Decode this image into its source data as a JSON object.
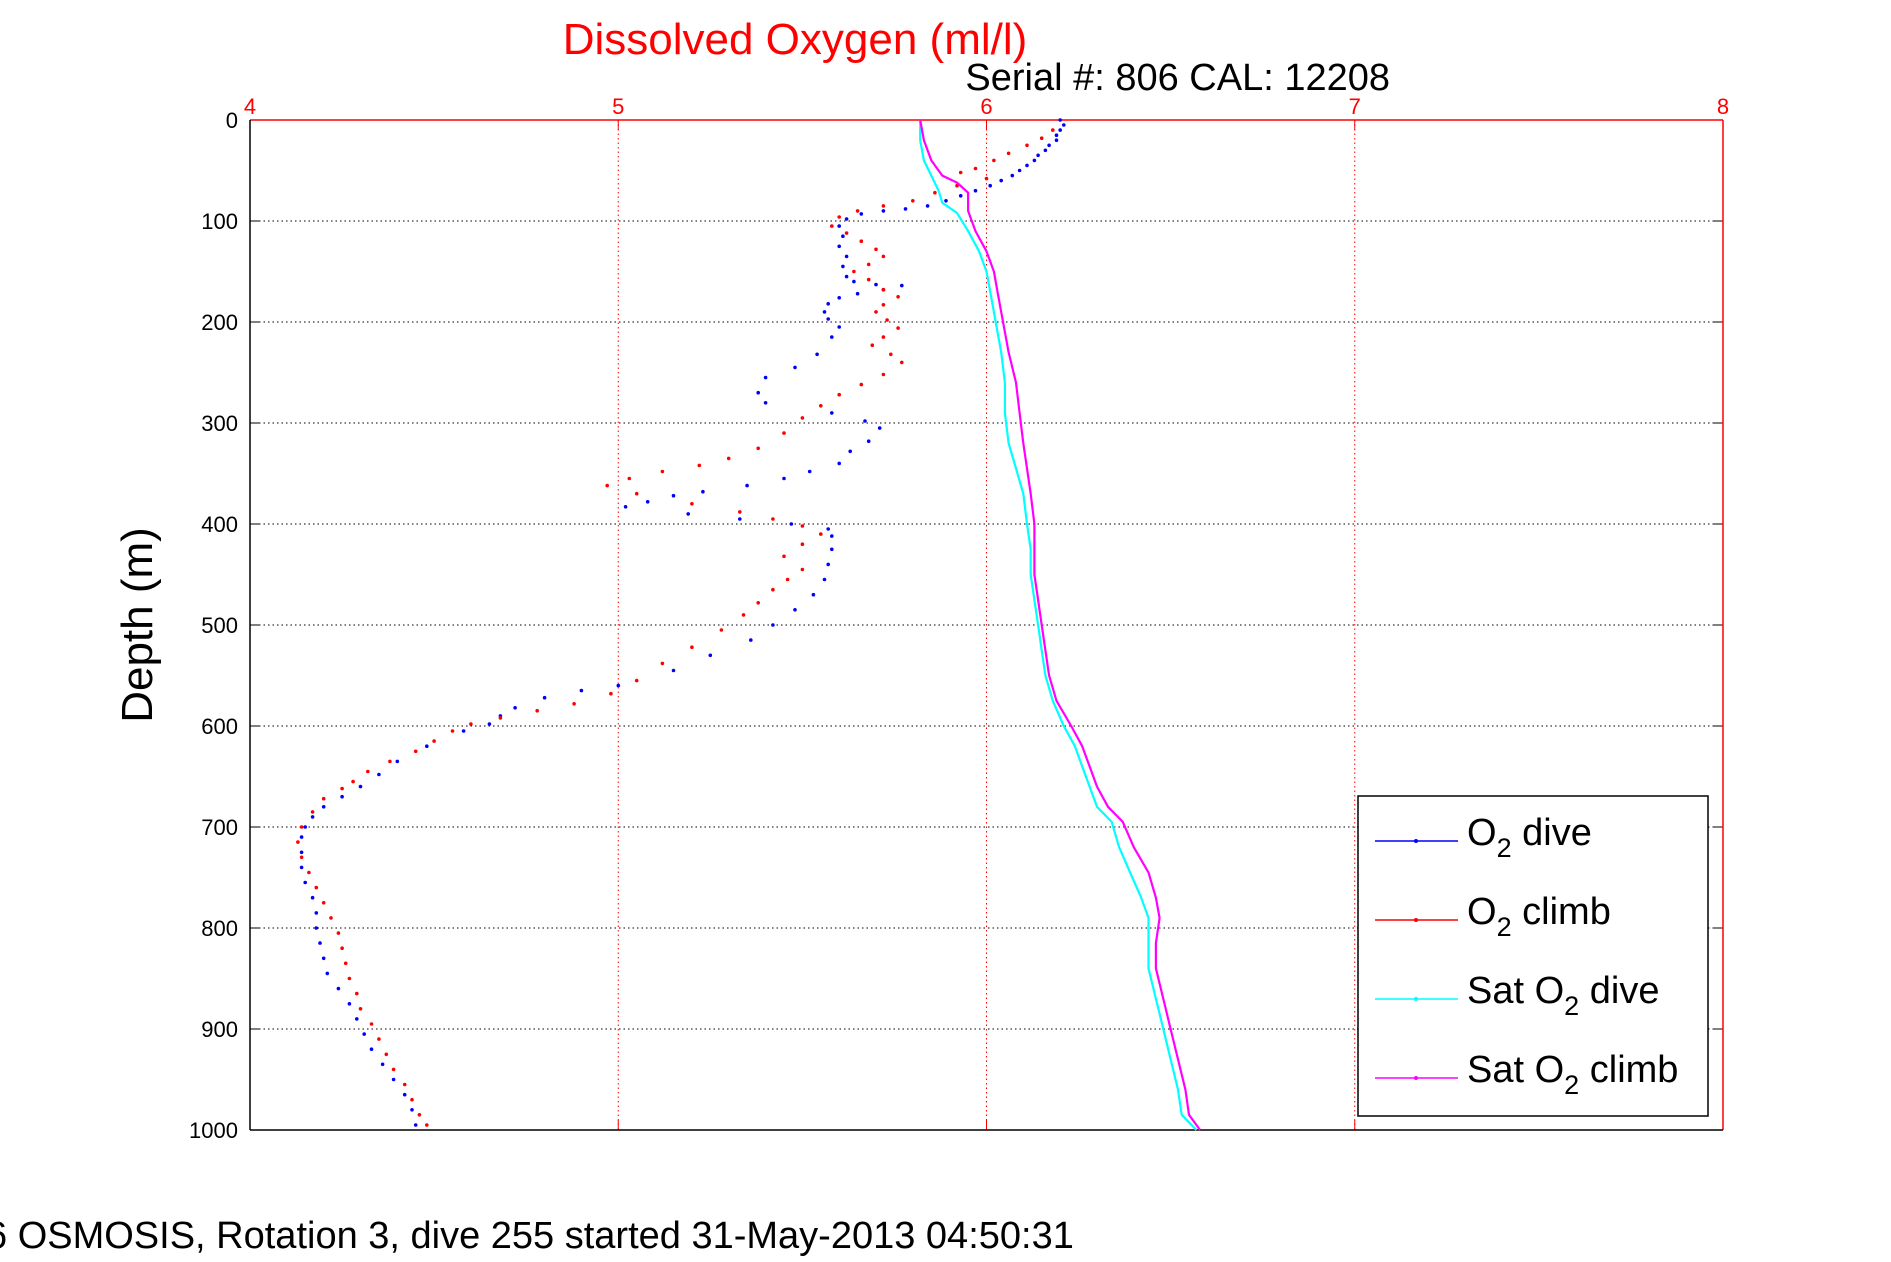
{
  "chart_data": {
    "type": "scatter",
    "title": "Dissolved Oxygen (ml/l)",
    "subtitle": "Serial #: 806  CAL: 12208",
    "ylabel": "Depth (m)",
    "xlabel": "",
    "footer": "6 OSMOSIS, Rotation 3, dive 255 started 31-May-2013 04:50:31",
    "xlim": [
      4,
      8
    ],
    "ylim": [
      1000,
      0
    ],
    "x_ticks": [
      "4",
      "5",
      "6",
      "7",
      "8"
    ],
    "y_ticks": [
      "0",
      "100",
      "200",
      "300",
      "400",
      "500",
      "600",
      "700",
      "800",
      "900",
      "1000"
    ],
    "x_axis_position": "top",
    "grid": true,
    "legend_position": "bottom-right",
    "colors": {
      "o2_dive": "#0000ff",
      "o2_climb": "#ff0000",
      "sat_dive": "#00ffff",
      "sat_climb": "#ff00ff",
      "title": "#ff0000",
      "x_axis": "#ff0000"
    },
    "legend": [
      {
        "pre": "O",
        "sub": "2",
        "post": " dive",
        "color": "#0000ff"
      },
      {
        "pre": "O",
        "sub": "2",
        "post": " climb",
        "color": "#ff0000"
      },
      {
        "pre": "Sat O",
        "sub": "2",
        "post": " dive",
        "color": "#00ffff"
      },
      {
        "pre": "Sat O",
        "sub": "2",
        "post": " climb",
        "color": "#ff00ff"
      }
    ],
    "series": [
      {
        "key": "o2_dive",
        "style": "points",
        "color": "#0000ff",
        "points": [
          [
            6.2,
            0
          ],
          [
            6.21,
            5
          ],
          [
            6.2,
            10
          ],
          [
            6.19,
            15
          ],
          [
            6.19,
            20
          ],
          [
            6.17,
            25
          ],
          [
            6.16,
            30
          ],
          [
            6.14,
            35
          ],
          [
            6.13,
            40
          ],
          [
            6.11,
            45
          ],
          [
            6.09,
            50
          ],
          [
            6.07,
            55
          ],
          [
            6.04,
            60
          ],
          [
            6.01,
            65
          ],
          [
            5.97,
            70
          ],
          [
            5.93,
            75
          ],
          [
            5.89,
            80
          ],
          [
            5.84,
            85
          ],
          [
            5.78,
            88
          ],
          [
            5.72,
            90
          ],
          [
            5.66,
            93
          ],
          [
            5.62,
            98
          ],
          [
            5.6,
            105
          ],
          [
            5.61,
            115
          ],
          [
            5.6,
            125
          ],
          [
            5.62,
            135
          ],
          [
            5.61,
            145
          ],
          [
            5.62,
            155
          ],
          [
            5.64,
            160
          ],
          [
            5.7,
            163
          ],
          [
            5.77,
            164
          ],
          [
            5.72,
            168
          ],
          [
            5.65,
            172
          ],
          [
            5.6,
            176
          ],
          [
            5.57,
            182
          ],
          [
            5.56,
            190
          ],
          [
            5.57,
            197
          ],
          [
            5.6,
            205
          ],
          [
            5.58,
            215
          ],
          [
            5.54,
            232
          ],
          [
            5.48,
            245
          ],
          [
            5.4,
            255
          ],
          [
            5.38,
            270
          ],
          [
            5.4,
            280
          ],
          [
            5.58,
            290
          ],
          [
            5.67,
            298
          ],
          [
            5.71,
            305
          ],
          [
            5.68,
            318
          ],
          [
            5.63,
            328
          ],
          [
            5.6,
            340
          ],
          [
            5.52,
            348
          ],
          [
            5.45,
            355
          ],
          [
            5.35,
            362
          ],
          [
            5.23,
            368
          ],
          [
            5.15,
            372
          ],
          [
            5.08,
            378
          ],
          [
            5.02,
            383
          ],
          [
            5.19,
            390
          ],
          [
            5.33,
            395
          ],
          [
            5.47,
            400
          ],
          [
            5.57,
            405
          ],
          [
            5.58,
            412
          ],
          [
            5.58,
            425
          ],
          [
            5.57,
            440
          ],
          [
            5.56,
            455
          ],
          [
            5.53,
            470
          ],
          [
            5.48,
            485
          ],
          [
            5.42,
            500
          ],
          [
            5.36,
            515
          ],
          [
            5.25,
            530
          ],
          [
            5.15,
            545
          ],
          [
            5.0,
            560
          ],
          [
            4.9,
            565
          ],
          [
            4.8,
            572
          ],
          [
            4.72,
            582
          ],
          [
            4.68,
            590
          ],
          [
            4.65,
            598
          ],
          [
            4.58,
            605
          ],
          [
            4.48,
            620
          ],
          [
            4.4,
            635
          ],
          [
            4.35,
            648
          ],
          [
            4.3,
            660
          ],
          [
            4.25,
            670
          ],
          [
            4.2,
            680
          ],
          [
            4.17,
            690
          ],
          [
            4.15,
            700
          ],
          [
            4.14,
            710
          ],
          [
            4.14,
            725
          ],
          [
            4.14,
            740
          ],
          [
            4.15,
            755
          ],
          [
            4.17,
            770
          ],
          [
            4.18,
            785
          ],
          [
            4.18,
            800
          ],
          [
            4.19,
            815
          ],
          [
            4.2,
            830
          ],
          [
            4.21,
            845
          ],
          [
            4.24,
            860
          ],
          [
            4.27,
            875
          ],
          [
            4.29,
            890
          ],
          [
            4.31,
            905
          ],
          [
            4.33,
            920
          ],
          [
            4.36,
            935
          ],
          [
            4.39,
            950
          ],
          [
            4.42,
            965
          ],
          [
            4.44,
            980
          ],
          [
            4.45,
            995
          ]
        ]
      },
      {
        "key": "o2_climb",
        "style": "points",
        "color": "#ff0000",
        "points": [
          [
            6.18,
            10
          ],
          [
            6.15,
            18
          ],
          [
            6.11,
            25
          ],
          [
            6.06,
            33
          ],
          [
            6.02,
            40
          ],
          [
            5.97,
            48
          ],
          [
            5.93,
            52
          ],
          [
            6.0,
            58
          ],
          [
            5.92,
            65
          ],
          [
            5.86,
            72
          ],
          [
            5.8,
            80
          ],
          [
            5.72,
            85
          ],
          [
            5.65,
            90
          ],
          [
            5.6,
            96
          ],
          [
            5.58,
            105
          ],
          [
            5.62,
            112
          ],
          [
            5.66,
            120
          ],
          [
            5.7,
            128
          ],
          [
            5.72,
            135
          ],
          [
            5.68,
            143
          ],
          [
            5.64,
            150
          ],
          [
            5.68,
            158
          ],
          [
            5.72,
            168
          ],
          [
            5.76,
            175
          ],
          [
            5.72,
            183
          ],
          [
            5.7,
            190
          ],
          [
            5.73,
            198
          ],
          [
            5.76,
            206
          ],
          [
            5.72,
            215
          ],
          [
            5.69,
            223
          ],
          [
            5.74,
            232
          ],
          [
            5.77,
            240
          ],
          [
            5.72,
            252
          ],
          [
            5.66,
            262
          ],
          [
            5.6,
            272
          ],
          [
            5.55,
            283
          ],
          [
            5.5,
            295
          ],
          [
            5.45,
            310
          ],
          [
            5.38,
            325
          ],
          [
            5.3,
            335
          ],
          [
            5.22,
            342
          ],
          [
            5.12,
            348
          ],
          [
            5.03,
            355
          ],
          [
            4.97,
            362
          ],
          [
            5.05,
            370
          ],
          [
            5.2,
            380
          ],
          [
            5.33,
            388
          ],
          [
            5.42,
            395
          ],
          [
            5.5,
            402
          ],
          [
            5.55,
            410
          ],
          [
            5.5,
            420
          ],
          [
            5.45,
            432
          ],
          [
            5.5,
            445
          ],
          [
            5.46,
            455
          ],
          [
            5.42,
            465
          ],
          [
            5.38,
            478
          ],
          [
            5.34,
            490
          ],
          [
            5.28,
            505
          ],
          [
            5.2,
            522
          ],
          [
            5.12,
            538
          ],
          [
            5.05,
            555
          ],
          [
            4.98,
            568
          ],
          [
            4.88,
            578
          ],
          [
            4.78,
            585
          ],
          [
            4.68,
            592
          ],
          [
            4.6,
            598
          ],
          [
            4.55,
            605
          ],
          [
            4.5,
            615
          ],
          [
            4.45,
            625
          ],
          [
            4.38,
            635
          ],
          [
            4.32,
            645
          ],
          [
            4.28,
            655
          ],
          [
            4.25,
            662
          ],
          [
            4.2,
            672
          ],
          [
            4.17,
            685
          ],
          [
            4.14,
            700
          ],
          [
            4.13,
            715
          ],
          [
            4.14,
            730
          ],
          [
            4.16,
            745
          ],
          [
            4.18,
            760
          ],
          [
            4.2,
            775
          ],
          [
            4.22,
            790
          ],
          [
            4.24,
            805
          ],
          [
            4.25,
            820
          ],
          [
            4.26,
            835
          ],
          [
            4.27,
            850
          ],
          [
            4.29,
            865
          ],
          [
            4.3,
            880
          ],
          [
            4.33,
            895
          ],
          [
            4.35,
            910
          ],
          [
            4.37,
            925
          ],
          [
            4.39,
            940
          ],
          [
            4.42,
            955
          ],
          [
            4.44,
            970
          ],
          [
            4.46,
            985
          ],
          [
            4.48,
            995
          ]
        ]
      },
      {
        "key": "sat_dive",
        "style": "line",
        "color": "#00ffff",
        "points": [
          [
            5.82,
            0
          ],
          [
            5.82,
            20
          ],
          [
            5.83,
            40
          ],
          [
            5.85,
            55
          ],
          [
            5.87,
            70
          ],
          [
            5.88,
            82
          ],
          [
            5.92,
            92
          ],
          [
            5.95,
            110
          ],
          [
            5.98,
            130
          ],
          [
            6.0,
            150
          ],
          [
            6.01,
            170
          ],
          [
            6.02,
            190
          ],
          [
            6.03,
            210
          ],
          [
            6.04,
            230
          ],
          [
            6.05,
            260
          ],
          [
            6.05,
            290
          ],
          [
            6.06,
            320
          ],
          [
            6.08,
            345
          ],
          [
            6.1,
            370
          ],
          [
            6.11,
            400
          ],
          [
            6.12,
            425
          ],
          [
            6.12,
            450
          ],
          [
            6.13,
            475
          ],
          [
            6.14,
            500
          ],
          [
            6.15,
            525
          ],
          [
            6.16,
            550
          ],
          [
            6.18,
            575
          ],
          [
            6.21,
            600
          ],
          [
            6.24,
            620
          ],
          [
            6.26,
            640
          ],
          [
            6.28,
            660
          ],
          [
            6.3,
            680
          ],
          [
            6.34,
            695
          ],
          [
            6.36,
            720
          ],
          [
            6.39,
            745
          ],
          [
            6.42,
            770
          ],
          [
            6.44,
            790
          ],
          [
            6.44,
            815
          ],
          [
            6.44,
            840
          ],
          [
            6.46,
            870
          ],
          [
            6.48,
            900
          ],
          [
            6.5,
            930
          ],
          [
            6.52,
            960
          ],
          [
            6.53,
            985
          ],
          [
            6.57,
            1000
          ]
        ]
      },
      {
        "key": "sat_climb",
        "style": "line",
        "color": "#ff00ff",
        "points": [
          [
            5.82,
            0
          ],
          [
            5.83,
            20
          ],
          [
            5.85,
            40
          ],
          [
            5.88,
            55
          ],
          [
            5.92,
            62
          ],
          [
            5.95,
            72
          ],
          [
            5.95,
            90
          ],
          [
            5.97,
            110
          ],
          [
            6.0,
            130
          ],
          [
            6.02,
            150
          ],
          [
            6.03,
            170
          ],
          [
            6.04,
            190
          ],
          [
            6.05,
            210
          ],
          [
            6.06,
            230
          ],
          [
            6.08,
            260
          ],
          [
            6.09,
            290
          ],
          [
            6.1,
            320
          ],
          [
            6.11,
            345
          ],
          [
            6.12,
            370
          ],
          [
            6.13,
            400
          ],
          [
            6.13,
            425
          ],
          [
            6.13,
            450
          ],
          [
            6.14,
            475
          ],
          [
            6.15,
            500
          ],
          [
            6.16,
            525
          ],
          [
            6.17,
            550
          ],
          [
            6.19,
            575
          ],
          [
            6.23,
            600
          ],
          [
            6.26,
            620
          ],
          [
            6.28,
            640
          ],
          [
            6.3,
            660
          ],
          [
            6.33,
            680
          ],
          [
            6.37,
            695
          ],
          [
            6.4,
            720
          ],
          [
            6.44,
            745
          ],
          [
            6.46,
            770
          ],
          [
            6.47,
            790
          ],
          [
            6.46,
            815
          ],
          [
            6.46,
            840
          ],
          [
            6.48,
            870
          ],
          [
            6.5,
            900
          ],
          [
            6.52,
            930
          ],
          [
            6.54,
            960
          ],
          [
            6.55,
            985
          ],
          [
            6.58,
            1000
          ]
        ]
      }
    ]
  }
}
